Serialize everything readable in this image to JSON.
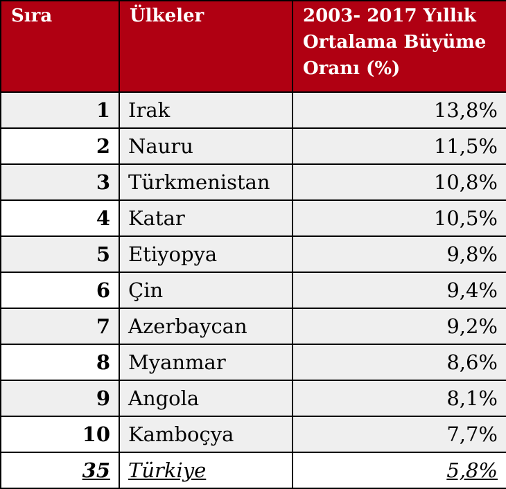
{
  "header": {
    "rank": "Sıra",
    "country": "Ülkeler",
    "rate_line1": "2003- 2017 Yıllık",
    "rate_line2": "Ortalama Büyüme",
    "rate_line3": "Oranı (%)"
  },
  "rows": [
    {
      "rank": "1",
      "country": "Irak",
      "rate": "13,8%"
    },
    {
      "rank": "2",
      "country": "Nauru",
      "rate": "11,5%"
    },
    {
      "rank": "3",
      "country": "Türkmenistan",
      "rate": "10,8%"
    },
    {
      "rank": "4",
      "country": "Katar",
      "rate": "10,5%"
    },
    {
      "rank": "5",
      "country": "Etiyopya",
      "rate": "9,8%"
    },
    {
      "rank": "6",
      "country": "Çin",
      "rate": "9,4%"
    },
    {
      "rank": "7",
      "country": "Azerbaycan",
      "rate": "9,2%"
    },
    {
      "rank": "8",
      "country": "Myanmar",
      "rate": "8,6%"
    },
    {
      "rank": "9",
      "country": "Angola",
      "rate": "8,1%"
    },
    {
      "rank": "10",
      "country": "Kamboçya",
      "rate": "7,7%"
    },
    {
      "rank": "35",
      "country": "Türkiye",
      "rate": "5,8%"
    }
  ],
  "colors": {
    "header_bg": "#b00012",
    "header_text": "#ffffff",
    "row_shade": "#efefef"
  }
}
